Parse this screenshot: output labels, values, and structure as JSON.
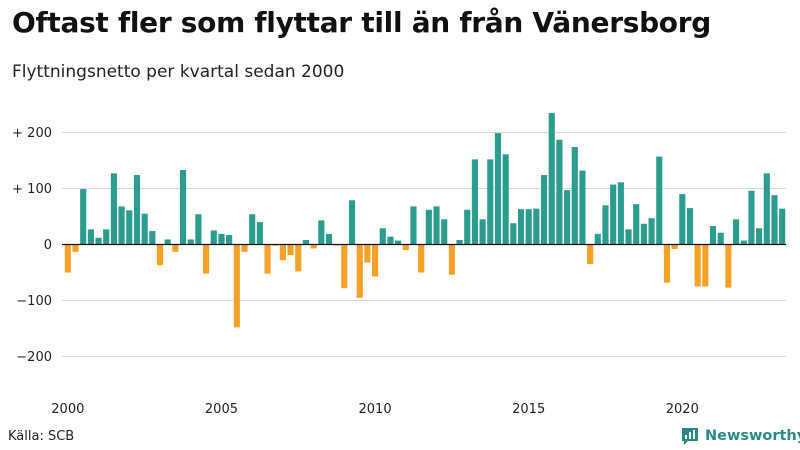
{
  "header": {
    "title": "Oftast fler som flyttar till än från Vänersborg",
    "subtitle": "Flyttningsnetto per kvartal sedan 2000"
  },
  "footer": {
    "source": "Källa: SCB",
    "brand": "Newsworthy"
  },
  "colors": {
    "positive": "#2a9d8f",
    "negative": "#f4a127",
    "grid": "#d9d9d9",
    "brand": "#2a8a84"
  },
  "chart_data": {
    "type": "bar",
    "title": "Oftast fler som flyttar till än från Vänersborg",
    "subtitle": "Flyttningsnetto per kvartal sedan 2000",
    "xlabel": "",
    "ylabel": "",
    "ylim": [
      -250,
      250
    ],
    "grid": true,
    "y_ticks": [
      {
        "value": 200,
        "label": "+ 200"
      },
      {
        "value": 100,
        "label": "+ 100"
      },
      {
        "value": 0,
        "label": "0"
      },
      {
        "value": -100,
        "label": "−100"
      },
      {
        "value": -200,
        "label": "−200"
      }
    ],
    "x_ticks": [
      "2000",
      "2005",
      "2010",
      "2015",
      "2020"
    ],
    "start": "2000 Q1",
    "series": [
      {
        "values": [
          -50,
          -13,
          99,
          27,
          12,
          27,
          127,
          68,
          61,
          124,
          55,
          24,
          -37,
          9,
          -13,
          133,
          9,
          54,
          -52,
          25,
          19,
          17,
          -148,
          -13,
          54,
          40,
          -52,
          -2,
          -28,
          -19,
          -48,
          8,
          -7,
          43,
          19,
          -2,
          -78,
          79,
          -95,
          -32,
          -57,
          29,
          14,
          7,
          -10,
          68,
          -50,
          62,
          68,
          45,
          -54,
          8,
          62,
          152,
          45,
          152,
          199,
          161,
          38,
          63,
          63,
          64,
          124,
          235,
          187,
          97,
          174,
          132,
          -35,
          19,
          70,
          107,
          111,
          27,
          72,
          37,
          47,
          157,
          -68,
          -8,
          90,
          65,
          -75,
          -75,
          33,
          21,
          -77,
          45,
          7,
          96,
          29,
          127,
          88,
          64
        ]
      }
    ]
  }
}
